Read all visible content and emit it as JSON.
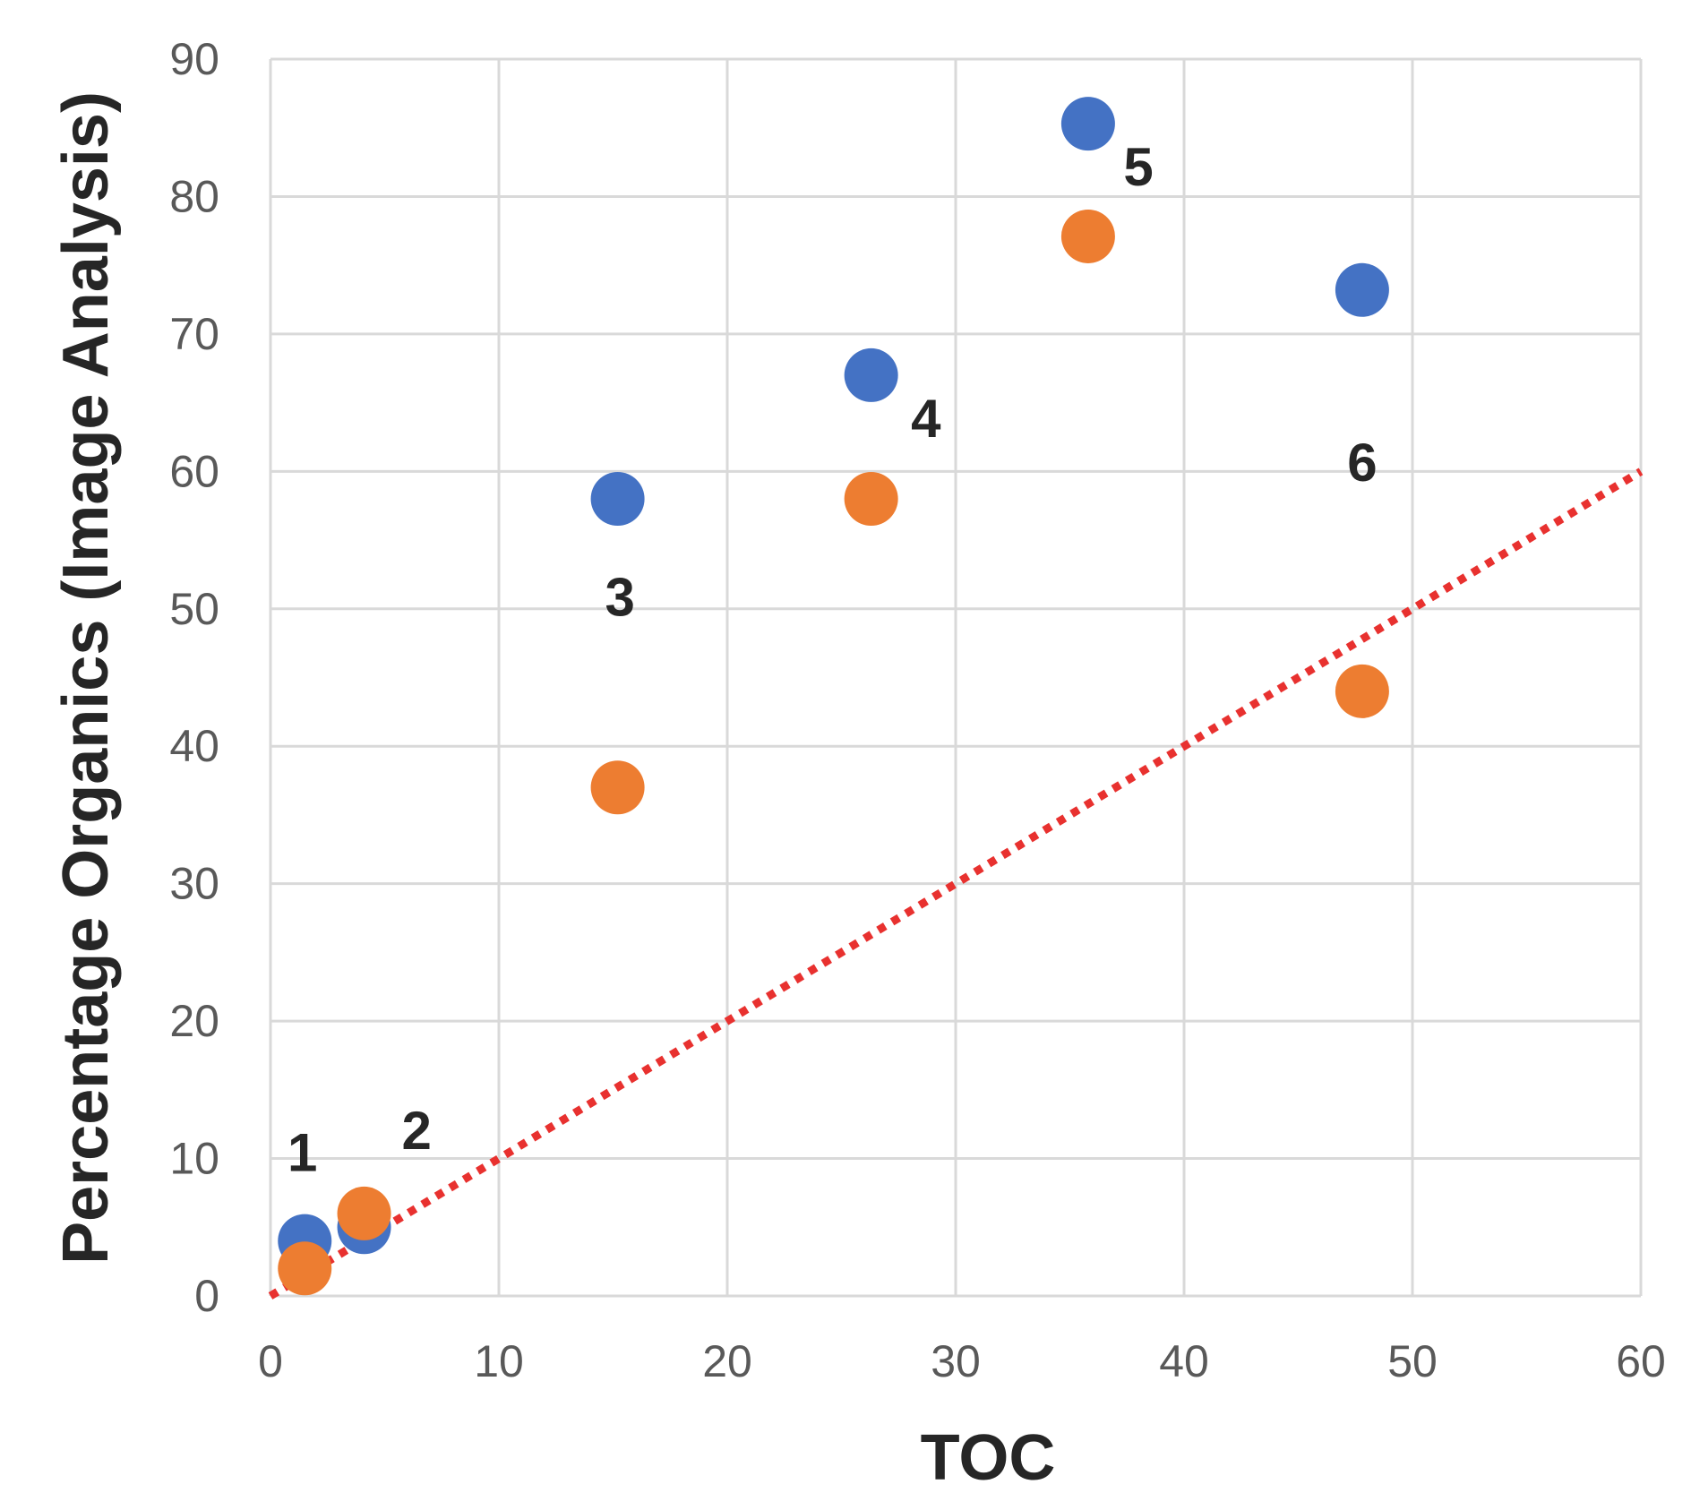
{
  "chart_data": {
    "type": "scatter",
    "title": "",
    "xlabel": "TOC",
    "ylabel": "Percentage Organics (Image Analysis)",
    "xlim": [
      0,
      60
    ],
    "ylim": [
      0,
      90
    ],
    "xticks": [
      0,
      10,
      20,
      30,
      40,
      50,
      60
    ],
    "yticks": [
      0,
      10,
      20,
      30,
      40,
      50,
      60,
      70,
      80,
      90
    ],
    "grid": true,
    "legend": "none",
    "series": [
      {
        "name": "blue",
        "color": "#4472c4",
        "points": [
          {
            "x": 1.5,
            "y": 4
          },
          {
            "x": 4.1,
            "y": 5
          },
          {
            "x": 15.2,
            "y": 58
          },
          {
            "x": 26.3,
            "y": 67
          },
          {
            "x": 35.8,
            "y": 85.3
          },
          {
            "x": 47.8,
            "y": 73.2
          }
        ]
      },
      {
        "name": "orange",
        "color": "#ed7d31",
        "points": [
          {
            "x": 1.5,
            "y": 2
          },
          {
            "x": 4.1,
            "y": 6
          },
          {
            "x": 15.2,
            "y": 37
          },
          {
            "x": 26.3,
            "y": 58
          },
          {
            "x": 35.8,
            "y": 77.1
          },
          {
            "x": 47.8,
            "y": 44
          }
        ]
      }
    ],
    "reference_line": {
      "name": "1:1 line",
      "color": "#e8312f",
      "style": "dotted",
      "from": {
        "x": 0,
        "y": 0
      },
      "to": {
        "x": 60,
        "y": 60
      }
    },
    "annotations": [
      {
        "text": "1",
        "x": 1.4,
        "y": 9.1
      },
      {
        "text": "2",
        "x": 6.4,
        "y": 10.7
      },
      {
        "text": "3",
        "x": 15.3,
        "y": 49.5
      },
      {
        "text": "4",
        "x": 28.7,
        "y": 62.5
      },
      {
        "text": "5",
        "x": 38,
        "y": 80.8
      },
      {
        "text": "6",
        "x": 47.8,
        "y": 59.3
      }
    ]
  }
}
